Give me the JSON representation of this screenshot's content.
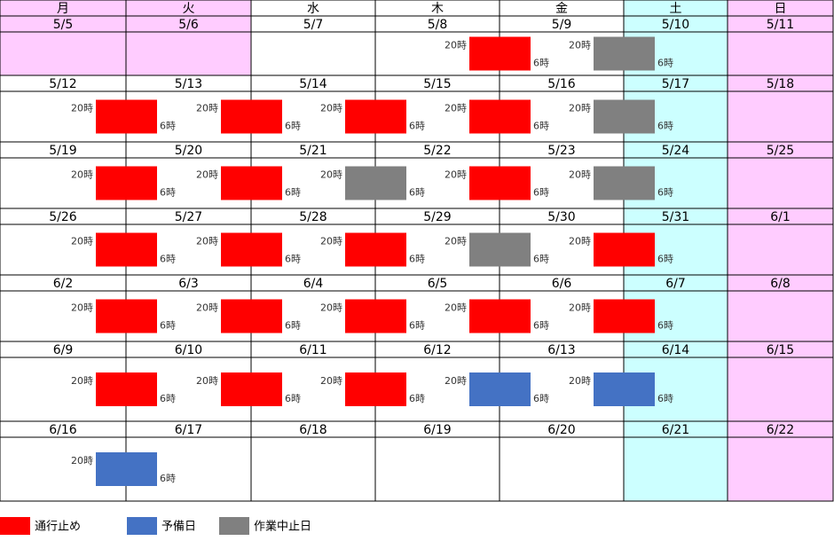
{
  "weekdays": [
    "月",
    "火",
    "水",
    "木",
    "金",
    "土",
    "日"
  ],
  "legend": [
    {
      "label": "通行止め",
      "color": "#ff0000"
    },
    {
      "label": "予備日",
      "color": "#4472c4"
    },
    {
      "label": "作業中止日",
      "color": "#808080"
    }
  ],
  "weeks": [
    {
      "dates": [
        "5/5",
        "5/6",
        "5/7",
        "5/8",
        "5/9",
        "5/10",
        "5/11"
      ],
      "holidays": [
        0,
        1
      ],
      "nights": [
        {
          "day": 3,
          "status": 0,
          "start": "20時",
          "end": "6時"
        },
        {
          "day": 4,
          "status": 2,
          "start": "20時",
          "end": "6時"
        }
      ]
    },
    {
      "dates": [
        "5/12",
        "5/13",
        "5/14",
        "5/15",
        "5/16",
        "5/17",
        "5/18"
      ],
      "holidays": [],
      "nights": [
        {
          "day": 0,
          "status": 0,
          "start": "20時",
          "end": "6時"
        },
        {
          "day": 1,
          "status": 0,
          "start": "20時",
          "end": "6時"
        },
        {
          "day": 2,
          "status": 0,
          "start": "20時",
          "end": "6時"
        },
        {
          "day": 3,
          "status": 0,
          "start": "20時",
          "end": "6時"
        },
        {
          "day": 4,
          "status": 2,
          "start": "20時",
          "end": "6時"
        }
      ]
    },
    {
      "dates": [
        "5/19",
        "5/20",
        "5/21",
        "5/22",
        "5/23",
        "5/24",
        "5/25"
      ],
      "holidays": [],
      "nights": [
        {
          "day": 0,
          "status": 0,
          "start": "20時",
          "end": "6時"
        },
        {
          "day": 1,
          "status": 0,
          "start": "20時",
          "end": "6時"
        },
        {
          "day": 2,
          "status": 2,
          "start": "20時",
          "end": "6時"
        },
        {
          "day": 3,
          "status": 0,
          "start": "20時",
          "end": "6時"
        },
        {
          "day": 4,
          "status": 2,
          "start": "20時",
          "end": "6時"
        }
      ]
    },
    {
      "dates": [
        "5/26",
        "5/27",
        "5/28",
        "5/29",
        "5/30",
        "5/31",
        "6/1"
      ],
      "holidays": [],
      "nights": [
        {
          "day": 0,
          "status": 0,
          "start": "20時",
          "end": "6時"
        },
        {
          "day": 1,
          "status": 0,
          "start": "20時",
          "end": "6時"
        },
        {
          "day": 2,
          "status": 0,
          "start": "20時",
          "end": "6時"
        },
        {
          "day": 3,
          "status": 2,
          "start": "20時",
          "end": "6時"
        },
        {
          "day": 4,
          "status": 0,
          "start": "20時",
          "end": "6時"
        }
      ]
    },
    {
      "dates": [
        "6/2",
        "6/3",
        "6/4",
        "6/5",
        "6/6",
        "6/7",
        "6/8"
      ],
      "holidays": [],
      "nights": [
        {
          "day": 0,
          "status": 0,
          "start": "20時",
          "end": "6時"
        },
        {
          "day": 1,
          "status": 0,
          "start": "20時",
          "end": "6時"
        },
        {
          "day": 2,
          "status": 0,
          "start": "20時",
          "end": "6時"
        },
        {
          "day": 3,
          "status": 0,
          "start": "20時",
          "end": "6時"
        },
        {
          "day": 4,
          "status": 0,
          "start": "20時",
          "end": "6時"
        }
      ]
    },
    {
      "dates": [
        "6/9",
        "6/10",
        "6/11",
        "6/12",
        "6/13",
        "6/14",
        "6/15"
      ],
      "holidays": [],
      "nights": [
        {
          "day": 0,
          "status": 0,
          "start": "20時",
          "end": "6時"
        },
        {
          "day": 1,
          "status": 0,
          "start": "20時",
          "end": "6時"
        },
        {
          "day": 2,
          "status": 0,
          "start": "20時",
          "end": "6時"
        },
        {
          "day": 3,
          "status": 1,
          "start": "20時",
          "end": "6時"
        },
        {
          "day": 4,
          "status": 1,
          "start": "20時",
          "end": "6時"
        }
      ]
    },
    {
      "dates": [
        "6/16",
        "6/17",
        "6/18",
        "6/19",
        "6/20",
        "6/21",
        "6/22"
      ],
      "holidays": [],
      "nights": [
        {
          "day": 0,
          "status": 1,
          "start": "20時",
          "end": "6時"
        }
      ]
    }
  ]
}
